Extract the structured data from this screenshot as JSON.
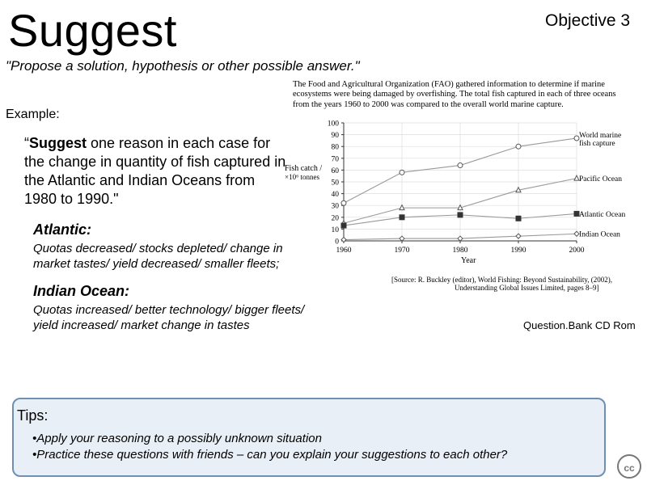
{
  "slide": {
    "title": "Suggest",
    "objective": "Objective 3",
    "subtitle": "\"Propose a solution, hypothesis or other possible answer.\"",
    "example_label": "Example:",
    "question_bold": "Suggest",
    "question_rest": " one reason in each case for the change in quantity of fish captured in the Atlantic and Indian Oceans from 1980 to 1990.\"",
    "question_open_quote": "“",
    "atlantic_heading": "Atlantic:",
    "atlantic_answer": "Quotas decreased/ stocks depleted/ change in market tastes/ yield decreased/ smaller fleets;",
    "indian_heading": "Indian Ocean:",
    "indian_answer": "Quotas increased/ better technology/ bigger fleets/ yield increased/ market change in tastes",
    "credit": "Question.Bank CD Rom",
    "tips_heading": "Tips:",
    "tips": [
      "•Apply your reasoning to a possibly unknown situation",
      "•Practice these questions with friends – can you explain your suggestions to each other?"
    ],
    "cc_label": "cc"
  },
  "figure": {
    "intro": "The Food and Agricultural Organization (FAO) gathered information to determine if marine ecosystems were being damaged by overfishing. The total fish captured in each of three oceans from the years 1960 to 2000 was compared to the overall world marine capture.",
    "source_line1": "[Source: R. Buckley (editor), World Fishing: Beyond Sustainability, (2002),",
    "source_line2": "Understanding Global Issues Limited, pages 8–9]"
  },
  "chart_data": {
    "type": "line",
    "xlabel": "Year",
    "ylabel_line1": "Fish catch /",
    "ylabel_line2": "×10⁶ tonnes",
    "x": [
      1960,
      1970,
      1980,
      1990,
      2000
    ],
    "xlim": [
      1960,
      2000
    ],
    "ylim": [
      0,
      100
    ],
    "x_ticks": [
      1960,
      1970,
      1980,
      1990,
      2000
    ],
    "y_ticks": [
      0,
      10,
      20,
      30,
      40,
      50,
      60,
      70,
      80,
      90,
      100
    ],
    "grid": true,
    "series": [
      {
        "name": "World marine fish capture",
        "label_line1": "World marine",
        "label_line2": "fish capture",
        "marker": "circle",
        "values": [
          32,
          58,
          64,
          80,
          87
        ]
      },
      {
        "name": "Pacific Ocean",
        "marker": "triangle",
        "values": [
          15,
          28,
          28,
          43,
          53
        ]
      },
      {
        "name": "Atlantic Ocean",
        "marker": "square",
        "values": [
          13,
          20,
          22,
          19,
          23
        ]
      },
      {
        "name": "Indian Ocean",
        "marker": "diamond",
        "values": [
          1,
          2,
          2,
          4,
          6
        ]
      }
    ],
    "colors": {
      "line": "#9a9a9a",
      "marker": "#555555",
      "axis": "#333333",
      "grid": "#dddddd"
    }
  }
}
